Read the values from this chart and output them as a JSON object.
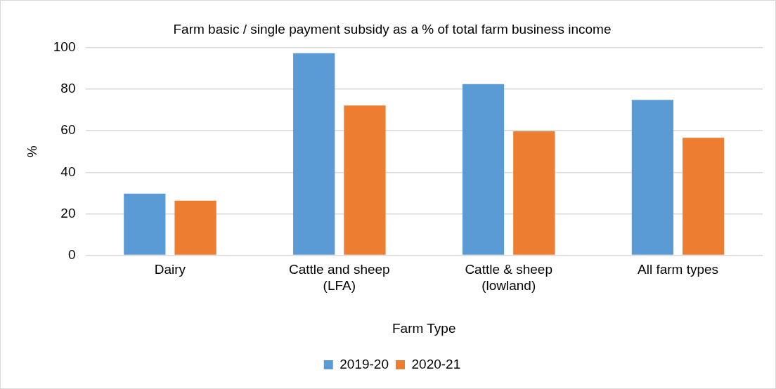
{
  "chart_data": {
    "type": "bar",
    "title": "Farm basic / single payment subsidy as a % of total farm business income",
    "xlabel": "Farm Type",
    "ylabel": "%",
    "categories": [
      "Dairy",
      "Cattle and sheep (LFA)",
      "Cattle & sheep (lowland)",
      "All farm types"
    ],
    "series": [
      {
        "name": "2019-20",
        "color": "#5b9bd5",
        "values": [
          29.7,
          97.3,
          82.4,
          74.8
        ]
      },
      {
        "name": "2020-21",
        "color": "#ed7d31",
        "values": [
          26.3,
          72.1,
          59.7,
          56.6
        ]
      }
    ],
    "ylim": [
      0,
      100
    ],
    "yticks": [
      0,
      20,
      40,
      60,
      80,
      100
    ],
    "grid": "y",
    "legend": "bottom"
  }
}
